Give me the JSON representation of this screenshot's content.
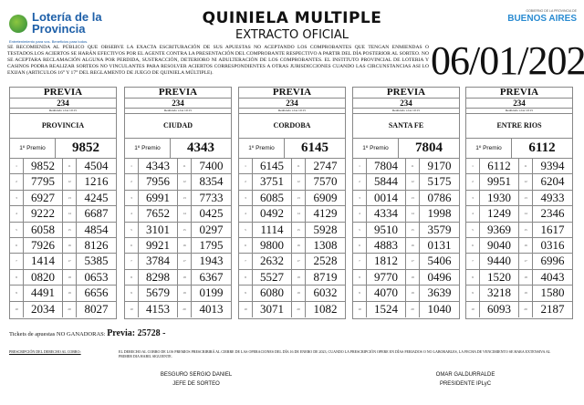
{
  "header": {
    "logo_text": "Lotería de la Provincia",
    "logo_slogan": "Entretenimiento para vos. Beneficios para todos.",
    "title": "QUINIELA MULTIPLE",
    "subtitle": "EXTRACTO OFICIAL",
    "gov_small": "GOBIERNO DE LA PROVINCIA DE",
    "gov_name": "BUENOS AIRES",
    "date": "06/01/2023",
    "disclaimer": "SE RECOMIENDA AL PÚBLICO QUE OBSERVE LA EXACTA ESCRITURACIÓN DE SUS APUESTAS NO ACEPTANDO LOS COMPROBANTES QUE TENGAN ENMIENDAS O TESTADOS.LOS ACIERTOS SE HARÁN EFECTIVOS POR EL AGENTE CONTRA LA PRESENTACIÓN DEL COMPROBANTE RESPECTIVO A PARTIR DEL DÍA POSTERIOR AL SORTEO. NO SE ACEPTARA RECLAMACIÓN ALGUNA POR PERDIDA, SUSTRACCIÓN, DETERIORO NI ADULTERACIÓN DE LOS COMPROBANTES. EL INSTITUTO PROVINCIAL DE LOTERIA Y CASINOS PODRA REALIZAR SORTEOS NO VINCULANTES PARA RESOLVER ACIERTOS CORRESPONDIENTES A OTRAS JURISDICCIONES CUANDO LAS CIRCUNSTANCIAS ASI LO EXIJAN (ARTICULOS 16° Y 17° DEL REGLAMENTO DE JUEGO DE QUINIELA MÚLTIPLE)."
  },
  "columns": [
    {
      "sorteo": "PREVIA",
      "number": "234",
      "time": "Realizado a las  10:15",
      "name": "PROVINCIA",
      "premio_label": "1º Premio",
      "premio": "9852",
      "results": [
        "9852",
        "7795",
        "6927",
        "9222",
        "6058",
        "7926",
        "1414",
        "0820",
        "4491",
        "2034",
        "4504",
        "1216",
        "4245",
        "6687",
        "4854",
        "8126",
        "5385",
        "0653",
        "6656",
        "8027"
      ]
    },
    {
      "sorteo": "PREVIA",
      "number": "234",
      "time": "Realizado a las  10:15",
      "name": "CIUDAD",
      "premio_label": "1º Premio",
      "premio": "4343",
      "results": [
        "4343",
        "7956",
        "6991",
        "7652",
        "3101",
        "9921",
        "3784",
        "8298",
        "5679",
        "4153",
        "7400",
        "8354",
        "7733",
        "0425",
        "0297",
        "1795",
        "1943",
        "6367",
        "0199",
        "4013"
      ]
    },
    {
      "sorteo": "PREVIA",
      "number": "234",
      "time": "Realizado a las  10:15",
      "name": "CORDOBA",
      "premio_label": "1º Premio",
      "premio": "6145",
      "results": [
        "6145",
        "3751",
        "6085",
        "0492",
        "1114",
        "9800",
        "2632",
        "5527",
        "6080",
        "3071",
        "2747",
        "7570",
        "6909",
        "4129",
        "5928",
        "1308",
        "2528",
        "8719",
        "6032",
        "1082"
      ]
    },
    {
      "sorteo": "PREVIA",
      "number": "234",
      "time": "Realizado a las  10:15",
      "name": "SANTA FE",
      "premio_label": "1º Premio",
      "premio": "7804",
      "results": [
        "7804",
        "5844",
        "0014",
        "4334",
        "9510",
        "4883",
        "1812",
        "9770",
        "4070",
        "1524",
        "9170",
        "5175",
        "0786",
        "1998",
        "3579",
        "0131",
        "5406",
        "0496",
        "3639",
        "1040"
      ]
    },
    {
      "sorteo": "PREVIA",
      "number": "234",
      "time": "Realizado a las  10:15",
      "name": "ENTRE RIOS",
      "premio_label": "1º Premio",
      "premio": "6112",
      "results": [
        "6112",
        "9951",
        "1930",
        "1249",
        "9369",
        "9040",
        "9440",
        "1520",
        "3218",
        "6093",
        "9394",
        "6204",
        "4933",
        "2346",
        "1617",
        "0316",
        "6996",
        "4043",
        "1580",
        "2187"
      ]
    }
  ],
  "footer": {
    "tickets_label": "Tickets de apuestas NO GANADORAS:",
    "tickets_value": "Previa: 25728 -",
    "presc_label": "PRESCRIPCIÓN DEL DERECHO AL COBRO:",
    "presc_text": "EL DERECHO AL COBRO DE LOS PREMIOS PRESCRIBIRÁ AL CIERRE DE LAS OPERACIONES DEL DÍA 16 DE ENERO DE 2023, CUANDO LA PRESCRIPCIÓN OPERE EN DÍAS FERIADOS O NO LABORABLES, LA FECHA DE VENCIMIENTO SE HARA EXTENSIVA AL PRIMER DIA HABIL SIGUIENTE.",
    "sig1_name": "BESGURO SERGIO DANIEL",
    "sig1_role": "JEFE DE SORTEO",
    "sig2_name": "OMAR GALDURRALDE",
    "sig2_role": "PRESIDENTE IPLyC"
  }
}
